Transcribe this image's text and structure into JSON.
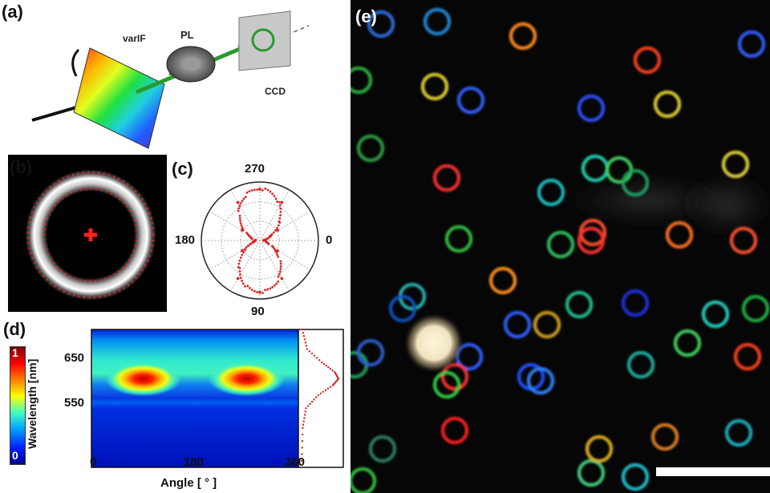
{
  "panels": {
    "a": {
      "label": "(a)",
      "components": {
        "filter": "varIF",
        "lens": "PL",
        "camera": "CCD"
      }
    },
    "b": {
      "label": "(b)"
    },
    "c": {
      "label": "(c)",
      "angle_labels": {
        "top": "270",
        "left": "180",
        "right": "0",
        "bottom": "90"
      }
    },
    "d": {
      "label": "(d)",
      "colorbar_ticks": [
        "1",
        "0"
      ],
      "ylabel": "Wavelength [nm]",
      "yticks": [
        "650",
        "550"
      ],
      "xlabel": "Angle [ ° ]",
      "xticks": [
        "0",
        "180",
        "360"
      ]
    },
    "e": {
      "label": "(e)"
    }
  },
  "colors": {
    "accent_red": "#e02020",
    "jet_blue": "#1030d8",
    "background_dark": "#050505"
  },
  "chart_data": [
    {
      "type": "scatter",
      "panel": "c",
      "coordinate_system": "polar",
      "angle_ticks_deg": [
        0,
        90,
        180,
        270
      ],
      "description_series": [
        {
          "values": [
            {
              "angle": 0,
              "r": 0.08
            },
            {
              "angle": 30,
              "r": 0.35
            },
            {
              "angle": 60,
              "r": 0.75
            },
            {
              "angle": 90,
              "r": 0.88
            },
            {
              "angle": 120,
              "r": 0.75
            },
            {
              "angle": 150,
              "r": 0.35
            },
            {
              "angle": 180,
              "r": 0.08
            },
            {
              "angle": 210,
              "r": 0.35
            },
            {
              "angle": 240,
              "r": 0.75
            },
            {
              "angle": 270,
              "r": 0.88
            },
            {
              "angle": 300,
              "r": 0.75
            },
            {
              "angle": 330,
              "r": 0.35
            }
          ]
        }
      ]
    },
    {
      "type": "heatmap",
      "panel": "d",
      "x_range": [
        0,
        360
      ],
      "y_range": [
        480,
        690
      ],
      "hotspots": [
        {
          "angle": 90,
          "wavelength": 615,
          "value": 1.0
        },
        {
          "angle": 270,
          "wavelength": 615,
          "value": 1.0
        }
      ],
      "colorbar_range": [
        0,
        1
      ]
    },
    {
      "type": "line",
      "panel": "d-side",
      "peak_wavelength": 615,
      "points": [
        {
          "wavelength": 690,
          "value": 0.02
        },
        {
          "wavelength": 660,
          "value": 0.15
        },
        {
          "wavelength": 640,
          "value": 0.55
        },
        {
          "wavelength": 625,
          "value": 0.9
        },
        {
          "wavelength": 615,
          "value": 1.0
        },
        {
          "wavelength": 605,
          "value": 0.85
        },
        {
          "wavelength": 590,
          "value": 0.45
        },
        {
          "wavelength": 570,
          "value": 0.12
        },
        {
          "wavelength": 540,
          "value": 0.03
        },
        {
          "wavelength": 480,
          "value": 0.0
        }
      ]
    }
  ]
}
